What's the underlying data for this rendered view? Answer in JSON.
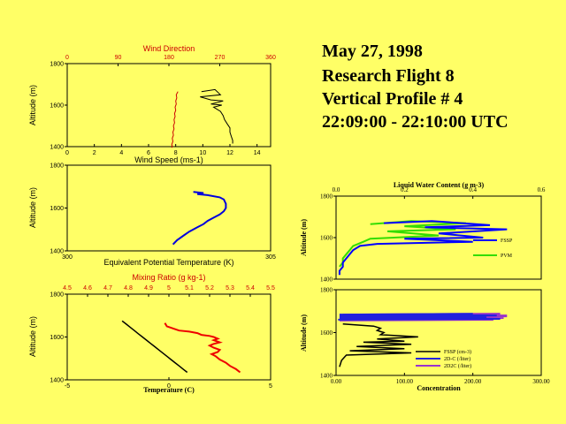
{
  "title": {
    "date": "May 27, 1998",
    "flight": "Research Flight 8",
    "profile": "Vertical Profile # 4",
    "time": "22:09:00 - 22:10:00 UTC"
  },
  "colors": {
    "background": "#ffff66",
    "wind_direction": "#cc0000",
    "wind_speed": "#000000",
    "theta_e": "#0000dd",
    "mixing_ratio": "#ee0000",
    "temperature": "#000000",
    "fssp_lwc": "#0000ff",
    "pvm_lwc": "#33dd00",
    "fssp_conc": "#000000",
    "conc_2dc": "#2222dd",
    "conc_2d2": "#9933cc"
  },
  "chart_data": [
    {
      "id": "wind",
      "type": "line",
      "ylabel": "Altitude (m)",
      "ylim": [
        1400,
        1800
      ],
      "yticks": [
        1400,
        1600,
        1800
      ],
      "top_axis": {
        "label": "Wind Direction",
        "range": [
          0,
          360
        ],
        "ticks": [
          0,
          90,
          180,
          270,
          360
        ]
      },
      "bottom_axis": {
        "label": "Wind Speed (ms-1)",
        "range": [
          0,
          15
        ],
        "ticks": [
          0,
          2,
          4,
          6,
          8,
          10,
          12,
          14
        ]
      },
      "series": [
        {
          "name": "Wind Direction",
          "axis": "top",
          "color": "#cc0000",
          "x": [
            196,
            193,
            194,
            192,
            193,
            191,
            192,
            190,
            191,
            189,
            190,
            188,
            189,
            187,
            188,
            186,
            187,
            185,
            186,
            185
          ],
          "y": [
            1665,
            1650,
            1635,
            1620,
            1605,
            1590,
            1575,
            1560,
            1545,
            1530,
            1515,
            1500,
            1485,
            1470,
            1455,
            1440,
            1425,
            1410,
            1400,
            1395
          ]
        },
        {
          "name": "Wind Speed",
          "axis": "bottom",
          "color": "#000000",
          "x": [
            9.9,
            10.9,
            11.3,
            9.8,
            10.6,
            11.5,
            10.6,
            11.4,
            10.8,
            11.3,
            11.5,
            11.6,
            11.8,
            12.0,
            12.0,
            12.1,
            12.2,
            12.2
          ],
          "y": [
            1665,
            1675,
            1650,
            1640,
            1625,
            1620,
            1605,
            1600,
            1590,
            1570,
            1550,
            1530,
            1510,
            1490,
            1470,
            1450,
            1430,
            1415
          ]
        }
      ]
    },
    {
      "id": "theta_e",
      "type": "line",
      "ylabel": "Altitude (m)",
      "ylim": [
        1400,
        1800
      ],
      "yticks": [
        1400,
        1600,
        1800
      ],
      "bottom_axis": {
        "label": "Equivalent Potential Temperature (K)",
        "range": [
          300,
          305
        ],
        "ticks": [
          300,
          305
        ]
      },
      "series": [
        {
          "name": "Equivalent Potential Temperature",
          "axis": "bottom",
          "color": "#0000dd",
          "x": [
            303.1,
            303.35,
            303.2,
            303.45,
            303.75,
            303.85,
            303.9,
            303.9,
            303.85,
            303.75,
            303.6,
            303.45,
            303.35,
            303.2,
            303.0,
            302.85,
            302.7,
            302.6
          ],
          "y": [
            1675,
            1670,
            1665,
            1660,
            1650,
            1640,
            1620,
            1600,
            1585,
            1570,
            1555,
            1540,
            1525,
            1510,
            1490,
            1470,
            1450,
            1430
          ]
        }
      ]
    },
    {
      "id": "mixing_temp",
      "type": "line",
      "ylabel": "Altitude (m)",
      "ylim": [
        1400,
        1800
      ],
      "yticks": [
        1400,
        1600,
        1800
      ],
      "top_axis": {
        "label": "Mixing Ratio (g kg-1)",
        "range": [
          4.5,
          5.5
        ],
        "ticks": [
          4.5,
          4.6,
          4.7,
          4.8,
          4.9,
          5.0,
          5.1,
          5.2,
          5.3,
          5.4,
          5.5
        ]
      },
      "bottom_axis": {
        "label": "Temperature (C)",
        "range": [
          -5,
          5
        ],
        "ticks": [
          -5,
          0,
          5
        ]
      },
      "series": [
        {
          "name": "Mixing Ratio",
          "axis": "top",
          "color": "#ee0000",
          "x": [
            4.98,
            4.99,
            5.02,
            5.05,
            5.1,
            5.14,
            5.16,
            5.2,
            5.22,
            5.24,
            5.22,
            5.25,
            5.22,
            5.2,
            5.22,
            5.25,
            5.24,
            5.21,
            5.23,
            5.25,
            5.28,
            5.3,
            5.33,
            5.35
          ],
          "y": [
            1665,
            1650,
            1640,
            1630,
            1625,
            1618,
            1610,
            1605,
            1600,
            1592,
            1585,
            1575,
            1568,
            1560,
            1550,
            1540,
            1530,
            1520,
            1510,
            1495,
            1480,
            1465,
            1450,
            1435
          ]
        },
        {
          "name": "Temperature",
          "axis": "bottom",
          "color": "#000000",
          "x": [
            -2.3,
            -2.1,
            -1.9,
            -1.7,
            -1.5,
            -1.3,
            -1.1,
            -0.9,
            -0.7,
            -0.5,
            -0.3,
            -0.1,
            0.1,
            0.3,
            0.5,
            0.7,
            0.9
          ],
          "y": [
            1675,
            1660,
            1645,
            1630,
            1615,
            1600,
            1585,
            1570,
            1555,
            1540,
            1525,
            1510,
            1495,
            1480,
            1465,
            1450,
            1435
          ]
        }
      ]
    },
    {
      "id": "lwc",
      "type": "line",
      "ylabel": "Altitude (m)",
      "ylim": [
        1400,
        1800
      ],
      "yticks": [
        1400,
        1600,
        1800
      ],
      "top_axis": {
        "label": "Liquid Water Content (g m-3)",
        "range": [
          0,
          0.6
        ],
        "ticks": [
          0,
          0.2,
          0.4,
          0.6
        ],
        "tick_labels": [
          "0.0",
          "0.2",
          "0.4",
          "0.6"
        ]
      },
      "legend": {
        "position": "right-center"
      },
      "series": [
        {
          "name": "FSSP",
          "axis": "top",
          "color": "#0000ff",
          "x": [
            0.14,
            0.28,
            0.45,
            0.26,
            0.5,
            0.3,
            0.43,
            0.2,
            0.4,
            0.12,
            0.07,
            0.05,
            0.04,
            0.03,
            0.02,
            0.02,
            0.01,
            0.01
          ],
          "y": [
            1670,
            1680,
            1660,
            1650,
            1640,
            1620,
            1600,
            1595,
            1580,
            1570,
            1560,
            1540,
            1520,
            1500,
            1480,
            1460,
            1440,
            1420
          ]
        },
        {
          "name": "PVM",
          "axis": "top",
          "color": "#33dd00",
          "x": [
            0.1,
            0.22,
            0.38,
            0.2,
            0.35,
            0.15,
            0.3,
            0.1,
            0.08,
            0.05,
            0.04,
            0.03,
            0.02,
            0.02,
            0.01
          ],
          "y": [
            1665,
            1680,
            1670,
            1655,
            1640,
            1630,
            1610,
            1595,
            1580,
            1560,
            1540,
            1520,
            1500,
            1480,
            1460
          ]
        }
      ]
    },
    {
      "id": "concentration",
      "type": "line",
      "ylabel": "Altitude (m)",
      "ylim": [
        1400,
        1800
      ],
      "yticks": [
        1400,
        1600,
        1800
      ],
      "bottom_axis": {
        "label": "Concentration",
        "range": [
          0,
          300
        ],
        "ticks": [
          0,
          100,
          200,
          300
        ],
        "tick_labels": [
          "0.00",
          "100.00",
          "200.00",
          "300.00"
        ]
      },
      "legend": {
        "position": "bottom-right"
      },
      "series": [
        {
          "name": "FSSP (cm-3)",
          "axis": "bottom",
          "color": "#000000",
          "x": [
            10,
            55,
            65,
            60,
            70,
            65,
            120,
            60,
            100,
            40,
            110,
            30,
            100,
            20,
            110,
            15,
            8,
            5
          ],
          "y": [
            1640,
            1630,
            1620,
            1610,
            1600,
            1590,
            1580,
            1570,
            1560,
            1555,
            1545,
            1535,
            1525,
            1515,
            1505,
            1495,
            1470,
            1440
          ]
        },
        {
          "name": "2D-C (/liter)",
          "axis": "bottom",
          "color": "#2222dd",
          "x": [
            200,
            5,
            235,
            5,
            220,
            5,
            240,
            3
          ],
          "y": [
            1688,
            1684,
            1680,
            1676,
            1672,
            1668,
            1664,
            1660
          ]
        },
        {
          "name": "2D2C (/liter)",
          "axis": "bottom",
          "color": "#9933cc",
          "x": [
            240,
            10,
            250,
            10,
            245,
            10,
            230,
            5
          ],
          "y": [
            1686,
            1682,
            1678,
            1674,
            1670,
            1666,
            1662,
            1658
          ]
        }
      ]
    }
  ]
}
